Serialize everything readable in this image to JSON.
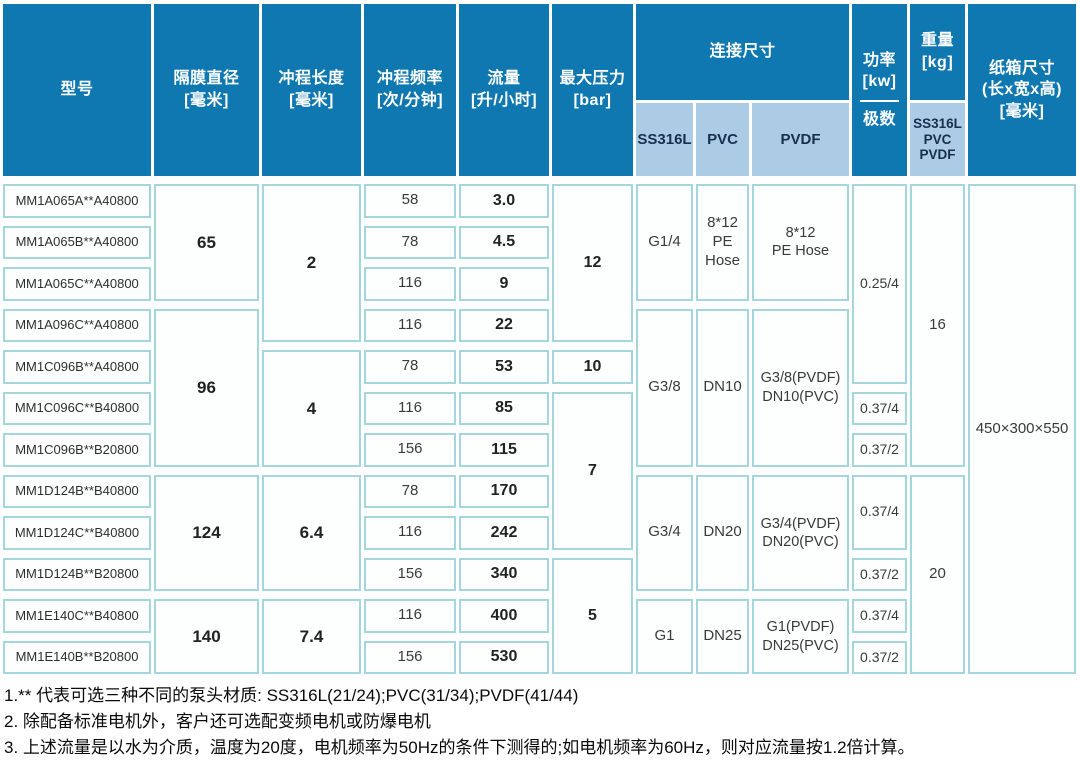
{
  "headers": {
    "model": "型号",
    "diaphragm": "隔膜直径\n[毫米]",
    "stroke_length": "冲程长度\n[毫米]",
    "stroke_freq": "冲程频率\n[次/分钟]",
    "flow": "流量\n[升/小时]",
    "max_pressure": "最大压力\n[bar]",
    "connection": "连接尺寸",
    "conn_subs": [
      "SS316L",
      "PVC",
      "PVDF"
    ],
    "power": "功率\n[kw]",
    "power_sub": "极数",
    "weight": "重量\n[kg]",
    "weight_sub": "SS316L\nPVC\nPVDF",
    "carton": "纸箱尺寸\n(长x宽x高)\n[毫米]"
  },
  "rows": {
    "models": [
      "MM1A065A**A40800",
      "MM1A065B**A40800",
      "MM1A065C**A40800",
      "MM1A096C**A40800",
      "MM1C096B**A40800",
      "MM1C096C**B40800",
      "MM1C096B**B20800",
      "MM1D124B**B40800",
      "MM1D124C**B40800",
      "MM1D124B**B20800",
      "MM1E140C**B40800",
      "MM1E140B**B20800"
    ],
    "diaphragm": [
      "65",
      "96",
      "124",
      "140"
    ],
    "stroke_length": [
      "2",
      "4",
      "6.4",
      "7.4"
    ],
    "stroke_freq": [
      "58",
      "78",
      "116",
      "116",
      "78",
      "116",
      "156",
      "78",
      "116",
      "156",
      "116",
      "156"
    ],
    "flow": [
      "3.0",
      "4.5",
      "9",
      "22",
      "53",
      "85",
      "115",
      "170",
      "242",
      "340",
      "400",
      "530"
    ],
    "max_pressure": [
      "12",
      "10",
      "7",
      "5"
    ],
    "conn_ss316l": [
      "G1/4",
      "G3/8",
      "G3/4",
      "G1"
    ],
    "conn_pvc": [
      "8*12\nPE\nHose",
      "DN10",
      "DN20",
      "DN25"
    ],
    "conn_pvdf": [
      "8*12\nPE Hose",
      "G3/8(PVDF)\nDN10(PVC)",
      "G3/4(PVDF)\nDN20(PVC)",
      "G1(PVDF)\nDN25(PVC)"
    ],
    "power": [
      "0.25/4",
      "0.37/4",
      "0.37/2",
      "0.37/4",
      "0.37/2",
      "0.37/4",
      "0.37/2"
    ],
    "weight": [
      "16",
      "20"
    ],
    "carton": "450×300×550"
  },
  "notes": [
    "1.** 代表可选三种不同的泵头材质: SS316L(21/24);PVC(31/34);PVDF(41/44)",
    "2. 除配备标准电机外，客户还可选配变频电机或防爆电机",
    "3. 上述流量是以水为介质，温度为20度，电机频率为50Hz的条件下测得的;如电机频率为60Hz，则对应流量按1.2倍计算。"
  ],
  "colors": {
    "header_blue": "#0f78b0",
    "subheader_light_blue": "#accbe4",
    "cell_border_teal": "#a4d6de",
    "subheader_text_navy": "#16304e"
  }
}
